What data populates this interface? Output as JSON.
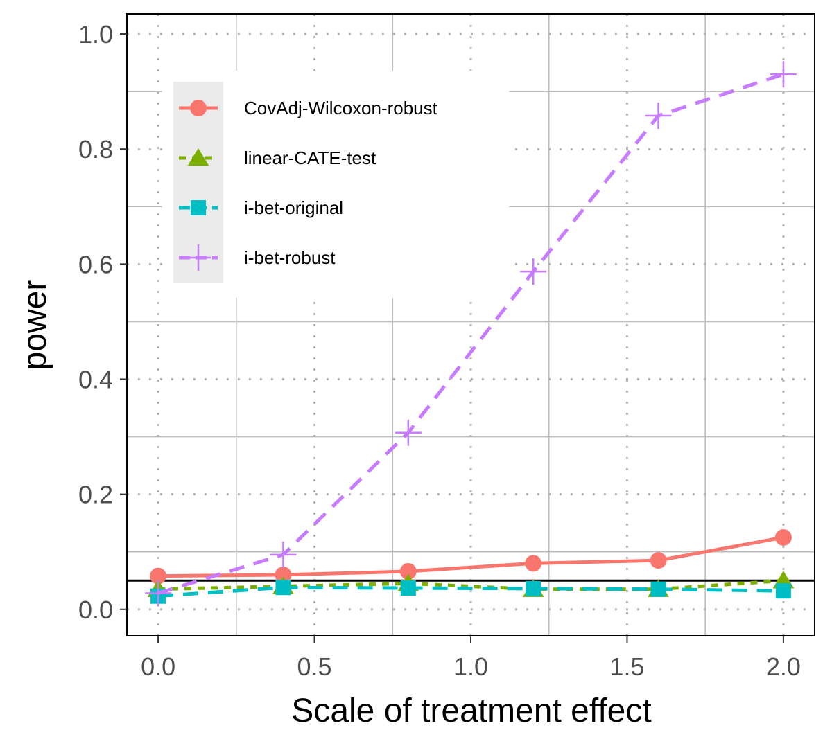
{
  "chart_data": {
    "type": "line",
    "xlabel": "Scale of treatment effect",
    "ylabel": "power",
    "xlim": [
      -0.1,
      2.1
    ],
    "ylim": [
      -0.046,
      1.035
    ],
    "x_ticks": [
      0.0,
      0.5,
      1.0,
      1.5,
      2.0
    ],
    "x_tick_labels": [
      "0.0",
      "0.5",
      "1.0",
      "1.5",
      "2.0"
    ],
    "y_ticks": [
      0.0,
      0.2,
      0.4,
      0.6,
      0.8,
      1.0
    ],
    "y_tick_labels": [
      "0.0",
      "0.2",
      "0.4",
      "0.6",
      "0.8",
      "1.0"
    ],
    "x_minor_ticks": [
      0.25,
      0.75,
      1.25,
      1.75
    ],
    "y_minor_ticks": [
      0.1,
      0.3,
      0.5,
      0.7,
      0.9
    ],
    "reference_line": 0.05,
    "x": [
      0.0,
      0.4,
      0.8,
      1.2,
      1.6,
      2.0
    ],
    "legend_position": "top-left",
    "series": [
      {
        "name": "CovAdj-Wilcoxon-robust",
        "values": [
          0.058,
          0.06,
          0.066,
          0.08,
          0.085,
          0.125
        ],
        "color": "#F8766D",
        "marker": "circle",
        "dash": "solid"
      },
      {
        "name": "linear-CATE-test",
        "values": [
          0.035,
          0.04,
          0.045,
          0.035,
          0.035,
          0.05
        ],
        "color": "#7CAE00",
        "marker": "triangle",
        "dash": "dotted"
      },
      {
        "name": "i-bet-original",
        "values": [
          0.023,
          0.038,
          0.037,
          0.036,
          0.035,
          0.032
        ],
        "color": "#00BFC4",
        "marker": "square",
        "dash": "dashed"
      },
      {
        "name": "i-bet-robust",
        "values": [
          0.028,
          0.095,
          0.307,
          0.587,
          0.858,
          0.93
        ],
        "color": "#C77CFF",
        "marker": "plus",
        "dash": "dashed"
      }
    ]
  }
}
